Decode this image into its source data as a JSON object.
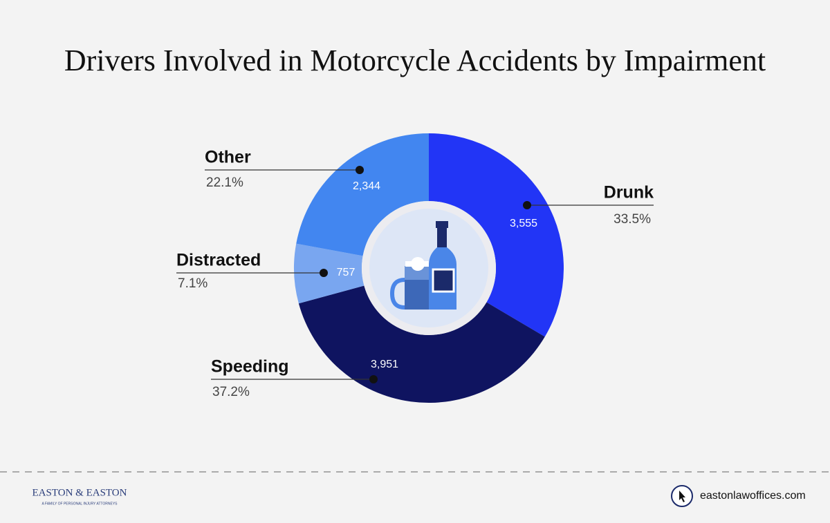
{
  "chart_data": {
    "type": "pie",
    "title": "Drivers Involved in Motorcycle Accidents by Impairment",
    "categories": [
      "Drunk",
      "Speeding",
      "Distracted",
      "Other"
    ],
    "values": [
      3555,
      3951,
      757,
      2344
    ],
    "value_labels": [
      "3,555",
      "3,951",
      "757",
      "2,344"
    ],
    "percents": [
      33.5,
      37.2,
      7.1,
      22.1
    ],
    "percent_labels": [
      "33.5%",
      "37.2%",
      "7.1%",
      "22.1%"
    ],
    "colors": [
      "#2235f6",
      "#0f1460",
      "#79a6f0",
      "#4286f0"
    ]
  },
  "footer": {
    "brand": "EASTON & EASTON",
    "tagline": "A FAMILY OF PERSONAL INJURY ATTORNEYS",
    "website": "eastonlawoffices.com"
  }
}
